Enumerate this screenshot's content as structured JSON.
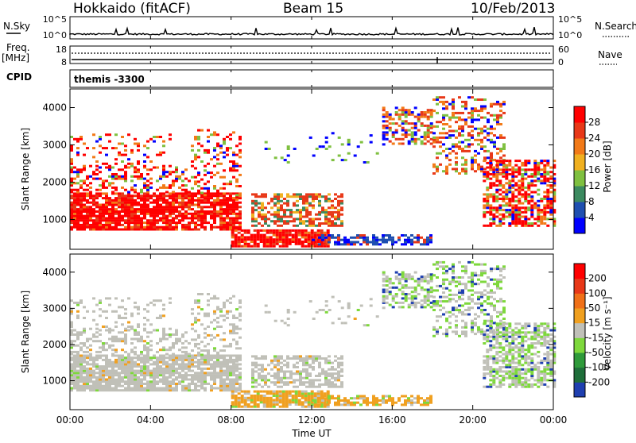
{
  "header": {
    "station": "Hokkaido (fitACF)",
    "beam": "Beam 15",
    "date": "10/Feb/2013"
  },
  "top_panels": {
    "nsky_label": "N.Sky",
    "nsky_ticks": [
      "10^5",
      "10^0"
    ],
    "nsearch_label": "N.Search",
    "nsearch_ticks": [
      "10^5",
      "10^0"
    ],
    "freq_label_line1": "Freq.",
    "freq_label_line2": "[MHz]",
    "freq_ticks": [
      "18",
      "8"
    ],
    "nave_label": "Nave",
    "nave_ticks": [
      "60",
      "0"
    ],
    "cpid_label": "CPID",
    "cpid_value": "themis -3300"
  },
  "chart_data": [
    {
      "type": "heatmap",
      "title": "",
      "ylabel": "Slant Range [km]",
      "xlabel": "",
      "ylim": [
        200,
        4500
      ],
      "xlim_hours": [
        0,
        24
      ],
      "y_ticks": [
        "1000",
        "2000",
        "3000",
        "4000"
      ],
      "colorbar_label": "Power [dB]",
      "colorbar_ticks": [
        "4",
        "8",
        "12",
        "16",
        "20",
        "24",
        "28"
      ],
      "colorbar_colors": [
        "#0000ff",
        "#1f4fb0",
        "#3c8a60",
        "#7fc040",
        "#f0b020",
        "#f27a18",
        "#e83818",
        "#ff0000"
      ]
    },
    {
      "type": "heatmap",
      "title": "",
      "ylabel": "Slant Range [km]",
      "xlabel": "Time UT",
      "ylim": [
        200,
        4500
      ],
      "xlim_hours": [
        0,
        24
      ],
      "y_ticks": [
        "1000",
        "2000",
        "3000",
        "4000"
      ],
      "x_ticks": [
        "00:00",
        "04:00",
        "08:00",
        "12:00",
        "16:00",
        "20:00",
        "00:00"
      ],
      "colorbar_label": "Velocity [m s⁻¹]",
      "colorbar_ticks": [
        "200",
        "100",
        "50",
        "15",
        "-15",
        "-50",
        "-100",
        "-200"
      ],
      "colorbar_colors": [
        "#1f3fb0",
        "#1f6e3a",
        "#2f9a3a",
        "#7ed83c",
        "#c0c0b8",
        "#f0a020",
        "#f07018",
        "#e83818",
        "#ff0000"
      ]
    }
  ]
}
